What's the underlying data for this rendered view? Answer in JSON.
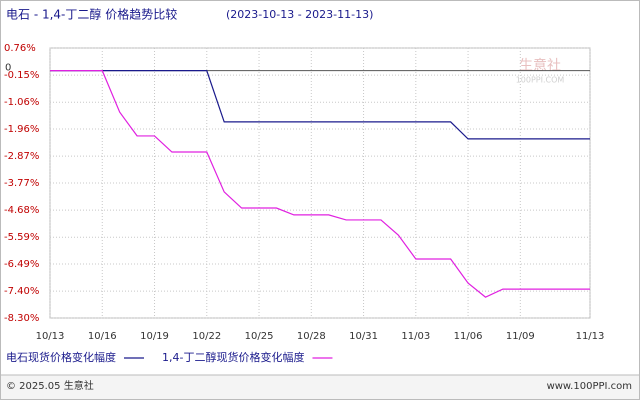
{
  "chart_data": {
    "type": "line",
    "title": "电石 - 1,4-丁二醇 价格趋势比较",
    "subtitle": "(2023-10-13 - 2023-11-13)",
    "x": [
      "10/13",
      "10/14",
      "10/15",
      "10/16",
      "10/17",
      "10/18",
      "10/19",
      "10/20",
      "10/21",
      "10/22",
      "10/23",
      "10/24",
      "10/25",
      "10/26",
      "10/27",
      "10/28",
      "10/29",
      "10/30",
      "10/31",
      "11/01",
      "11/02",
      "11/03",
      "11/04",
      "11/05",
      "11/06",
      "11/07",
      "11/08",
      "11/09",
      "11/10",
      "11/11",
      "11/12",
      "11/13"
    ],
    "xticks": [
      "10/13",
      "10/16",
      "10/19",
      "10/22",
      "10/25",
      "10/28",
      "10/31",
      "11/03",
      "11/06",
      "11/09",
      "11/13"
    ],
    "ylim": [
      -8.3,
      0.76
    ],
    "yticks": [
      {
        "value": 0.76,
        "label": "0.76%"
      },
      {
        "value": -0.15,
        "label": "-0.15%"
      },
      {
        "value": -1.06,
        "label": "-1.06%"
      },
      {
        "value": -1.96,
        "label": "-1.96%"
      },
      {
        "value": -2.87,
        "label": "-2.87%"
      },
      {
        "value": -3.77,
        "label": "-3.77%"
      },
      {
        "value": -4.68,
        "label": "-4.68%"
      },
      {
        "value": -5.59,
        "label": "-5.59%"
      },
      {
        "value": -6.49,
        "label": "-6.49%"
      },
      {
        "value": -7.4,
        "label": "-7.40%"
      },
      {
        "value": -8.3,
        "label": "-8.30%"
      }
    ],
    "zero_line": {
      "value": 0,
      "label": "0"
    },
    "grid": true,
    "series": [
      {
        "name": "电石现货价格变化幅度",
        "color": "#1a1a8c",
        "values": [
          0,
          0,
          0,
          0,
          0,
          0,
          0,
          0,
          0,
          0,
          -1.72,
          -1.72,
          -1.72,
          -1.72,
          -1.72,
          -1.72,
          -1.72,
          -1.72,
          -1.72,
          -1.72,
          -1.72,
          -1.72,
          -1.72,
          -1.72,
          -2.29,
          -2.29,
          -2.29,
          -2.29,
          -2.29,
          -2.29,
          -2.29,
          -2.29
        ]
      },
      {
        "name": "1,4-丁二醇现货价格变化幅度",
        "color": "#e020e0",
        "values": [
          0,
          0,
          0,
          0,
          -1.39,
          -2.19,
          -2.19,
          -2.73,
          -2.73,
          -2.73,
          -4.07,
          -4.61,
          -4.61,
          -4.61,
          -4.84,
          -4.84,
          -4.84,
          -5.01,
          -5.01,
          -5.01,
          -5.52,
          -6.32,
          -6.32,
          -6.32,
          -7.13,
          -7.6,
          -7.33,
          -7.33,
          -7.33,
          -7.33,
          -7.33,
          -7.33
        ]
      }
    ],
    "watermark": {
      "name": "生意社",
      "site": "100PPI.COM"
    },
    "footer": {
      "copyright": "© 2025.05 生意社",
      "url": "www.100PPI.com"
    }
  }
}
